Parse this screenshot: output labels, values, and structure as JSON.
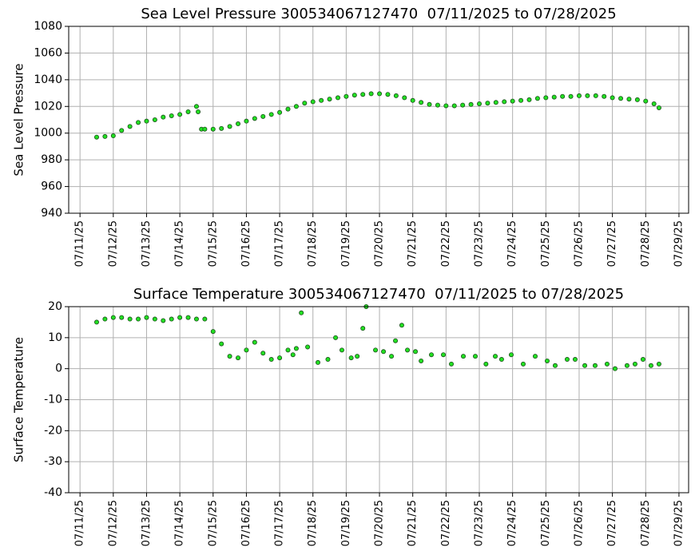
{
  "chart_data": [
    {
      "type": "scatter",
      "title": "Sea Level Pressure 300534067127470  07/11/2025 to 07/28/2025",
      "ylabel": "Sea Level Pressure",
      "x": [
        11.5,
        11.75,
        12,
        12.25,
        12.5,
        12.75,
        13,
        13.25,
        13.5,
        13.75,
        14,
        14.25,
        14.5,
        14.55,
        14.65,
        14.75,
        15,
        15.25,
        15.5,
        15.75,
        16,
        16.25,
        16.5,
        16.75,
        17,
        17.25,
        17.5,
        17.75,
        18,
        18.25,
        18.5,
        18.75,
        19,
        19.25,
        19.5,
        19.75,
        20,
        20.25,
        20.5,
        20.75,
        21,
        21.25,
        21.5,
        21.75,
        22,
        22.25,
        22.5,
        22.75,
        23,
        23.25,
        23.5,
        23.75,
        24,
        24.25,
        24.5,
        24.75,
        25,
        25.25,
        25.5,
        25.75,
        26,
        26.25,
        26.5,
        26.75,
        27,
        27.25,
        27.5,
        27.75,
        28,
        28.25,
        28.4
      ],
      "values": [
        997,
        997.5,
        998,
        1002,
        1005,
        1008,
        1009,
        1010,
        1012,
        1013,
        1014,
        1016,
        1020,
        1016,
        1003,
        1003,
        1003,
        1003.5,
        1005,
        1007,
        1009,
        1011,
        1012.5,
        1014,
        1015.5,
        1018,
        1020,
        1022.5,
        1023.5,
        1024.5,
        1025.5,
        1026.5,
        1027.5,
        1028.5,
        1029,
        1029.5,
        1029.5,
        1029,
        1028,
        1026.5,
        1024.5,
        1023,
        1021.5,
        1021,
        1020.5,
        1020.5,
        1021,
        1021.5,
        1022,
        1022.5,
        1023,
        1023.5,
        1024,
        1024.5,
        1025,
        1026,
        1026.5,
        1027,
        1027.5,
        1027.5,
        1028,
        1028,
        1028,
        1027.5,
        1026.5,
        1026,
        1025.5,
        1025,
        1024,
        1022,
        1019
      ],
      "color": "#22e022",
      "edgecolor": "#1b4d1b",
      "xlim": [
        10.66,
        29.29
      ],
      "ylim": [
        940,
        1080
      ],
      "xticks": [
        {
          "value": 11,
          "label": "07/11/25"
        },
        {
          "value": 12,
          "label": "07/12/25"
        },
        {
          "value": 13,
          "label": "07/13/25"
        },
        {
          "value": 14,
          "label": "07/14/25"
        },
        {
          "value": 15,
          "label": "07/15/25"
        },
        {
          "value": 16,
          "label": "07/16/25"
        },
        {
          "value": 17,
          "label": "07/17/25"
        },
        {
          "value": 18,
          "label": "07/18/25"
        },
        {
          "value": 19,
          "label": "07/19/25"
        },
        {
          "value": 20,
          "label": "07/20/25"
        },
        {
          "value": 21,
          "label": "07/21/25"
        },
        {
          "value": 22,
          "label": "07/22/25"
        },
        {
          "value": 23,
          "label": "07/23/25"
        },
        {
          "value": 24,
          "label": "07/24/25"
        },
        {
          "value": 25,
          "label": "07/25/25"
        },
        {
          "value": 26,
          "label": "07/26/25"
        },
        {
          "value": 27,
          "label": "07/27/25"
        },
        {
          "value": 28,
          "label": "07/28/25"
        },
        {
          "value": 29,
          "label": "07/29/25"
        }
      ],
      "yticks": [
        940,
        960,
        980,
        1000,
        1020,
        1040,
        1060,
        1080
      ],
      "grid": true
    },
    {
      "type": "scatter",
      "title": "Surface Temperature 300534067127470  07/11/2025 to 07/28/2025",
      "ylabel": "Surface Temperature",
      "x": [
        11.5,
        11.75,
        12,
        12.25,
        12.5,
        12.75,
        13,
        13.25,
        13.5,
        13.75,
        14,
        14.25,
        14.5,
        14.75,
        15,
        15.25,
        15.5,
        15.75,
        16,
        16.25,
        16.5,
        16.75,
        17,
        17.25,
        17.4,
        17.5,
        17.65,
        17.84,
        18.15,
        18.45,
        18.68,
        18.87,
        19.15,
        19.33,
        19.5,
        19.6,
        19.88,
        20.12,
        20.36,
        20.48,
        20.67,
        20.84,
        21.08,
        21.25,
        21.56,
        21.92,
        22.16,
        22.52,
        22.88,
        23.2,
        23.48,
        23.67,
        23.96,
        24.32,
        24.68,
        25.04,
        25.28,
        25.64,
        25.88,
        26.17,
        26.48,
        26.84,
        27.08,
        27.44,
        27.68,
        27.92,
        28.16,
        28.4
      ],
      "values": [
        15,
        16,
        16.5,
        16.5,
        16,
        16,
        16.5,
        16,
        15.5,
        16,
        16.5,
        16.5,
        16,
        16,
        12,
        8,
        4,
        3.5,
        6,
        8.5,
        5,
        3,
        3.5,
        6,
        4.5,
        6.5,
        18,
        7,
        2,
        3,
        10,
        6,
        3.5,
        4,
        13,
        20,
        6,
        5.5,
        4,
        9,
        14,
        6,
        5.5,
        2.5,
        4.5,
        4.5,
        1.5,
        4,
        4,
        1.5,
        4,
        3,
        4.5,
        1.5,
        4,
        2.5,
        1,
        3,
        3,
        1,
        1,
        1.5,
        0,
        1,
        1.5,
        3,
        1,
        1.5
      ],
      "color": "#22e022",
      "edgecolor": "#1b4d1b",
      "xlim": [
        10.66,
        29.29
      ],
      "ylim": [
        -40,
        20
      ],
      "xticks": [
        {
          "value": 11,
          "label": "07/11/25"
        },
        {
          "value": 12,
          "label": "07/12/25"
        },
        {
          "value": 13,
          "label": "07/13/25"
        },
        {
          "value": 14,
          "label": "07/14/25"
        },
        {
          "value": 15,
          "label": "07/15/25"
        },
        {
          "value": 16,
          "label": "07/16/25"
        },
        {
          "value": 17,
          "label": "07/17/25"
        },
        {
          "value": 18,
          "label": "07/18/25"
        },
        {
          "value": 19,
          "label": "07/19/25"
        },
        {
          "value": 20,
          "label": "07/20/25"
        },
        {
          "value": 21,
          "label": "07/21/25"
        },
        {
          "value": 22,
          "label": "07/22/25"
        },
        {
          "value": 23,
          "label": "07/23/25"
        },
        {
          "value": 24,
          "label": "07/24/25"
        },
        {
          "value": 25,
          "label": "07/25/25"
        },
        {
          "value": 26,
          "label": "07/26/25"
        },
        {
          "value": 27,
          "label": "07/27/25"
        },
        {
          "value": 28,
          "label": "07/28/25"
        },
        {
          "value": 29,
          "label": "07/29/25"
        }
      ],
      "yticks": [
        -40,
        -30,
        -20,
        -10,
        0,
        10,
        20
      ],
      "grid": true
    }
  ]
}
